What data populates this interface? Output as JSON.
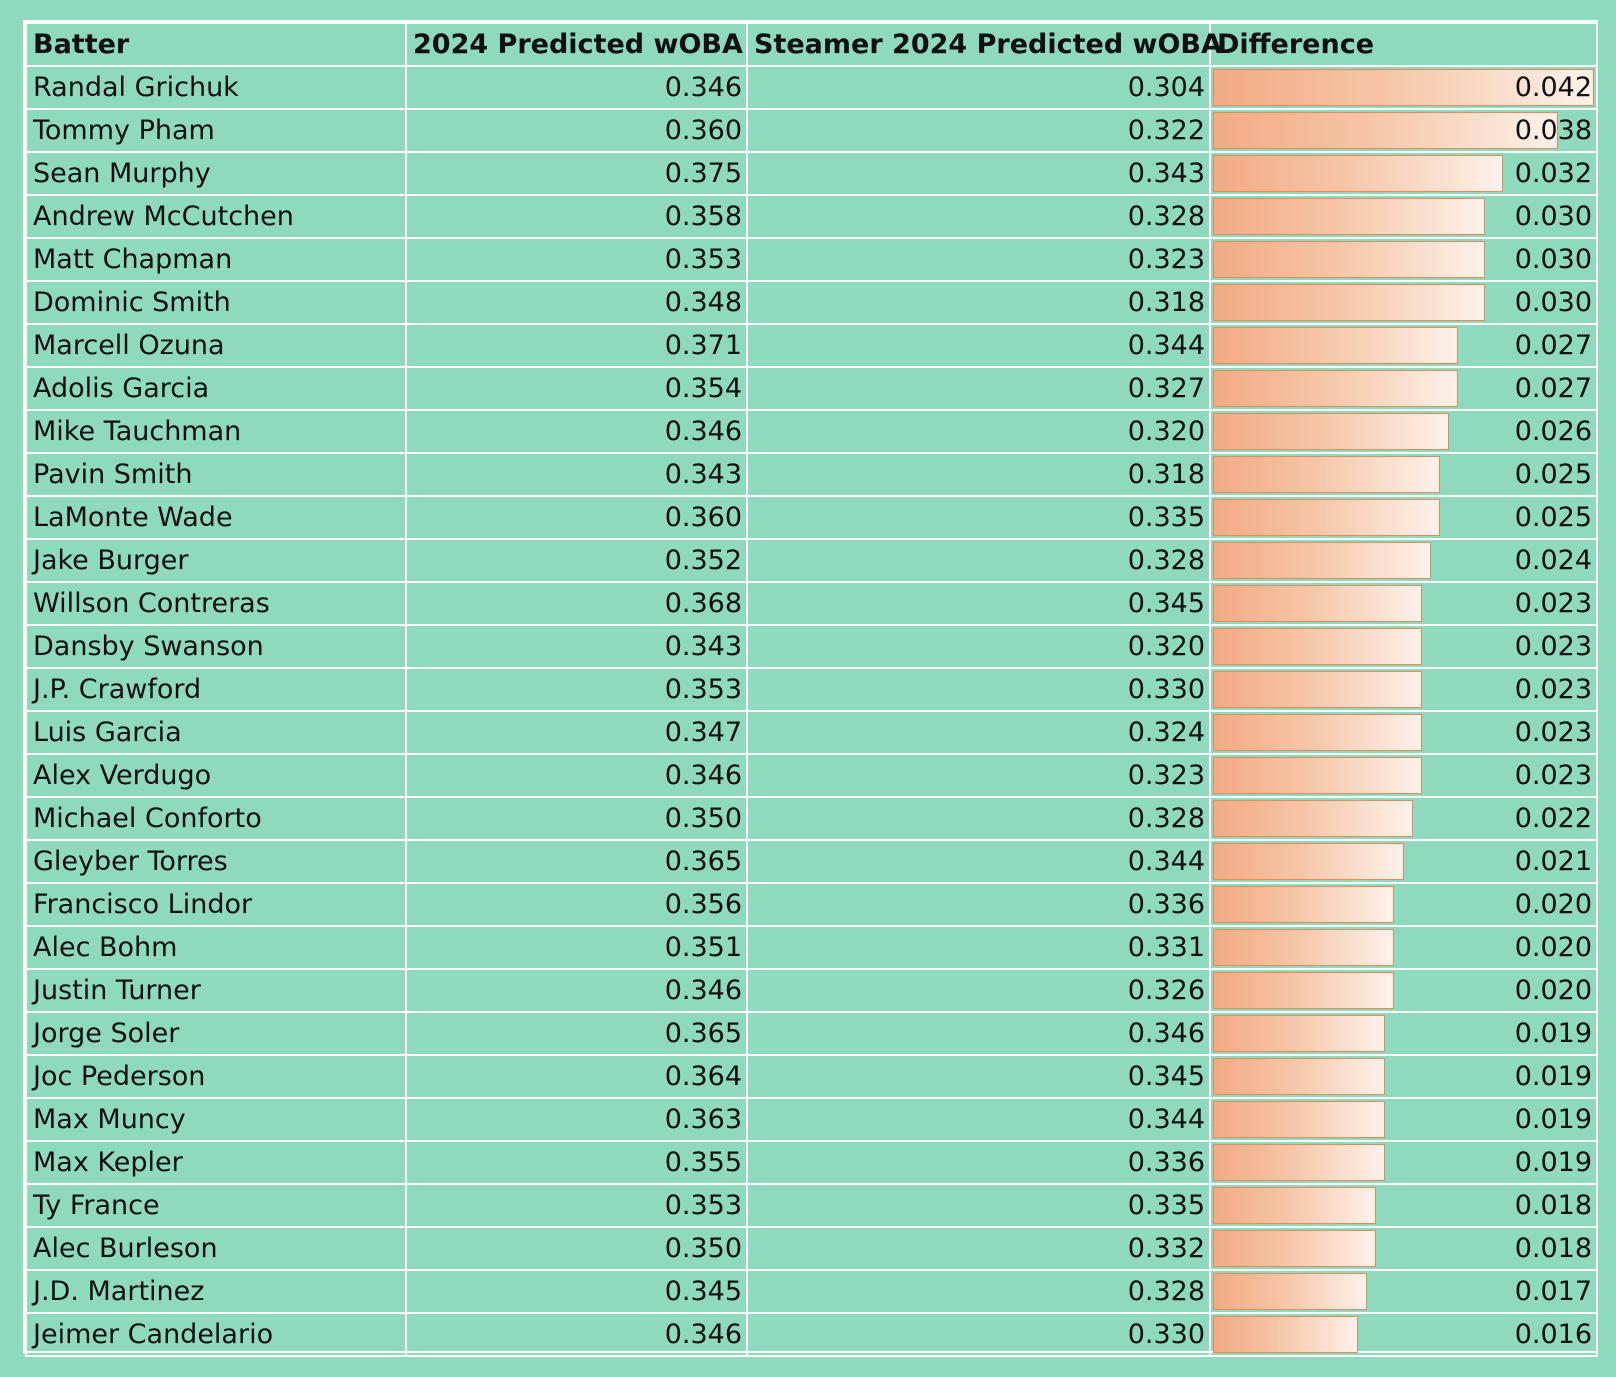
{
  "chart_data": {
    "type": "table",
    "columns": [
      "Batter",
      "2024 Predicted wOBA",
      "Steamer 2024 Predicted wOBA",
      "Difference"
    ],
    "rows": [
      {
        "batter": "Randal Grichuk",
        "predicted": "0.346",
        "steamer": "0.304",
        "difference": "0.042"
      },
      {
        "batter": "Tommy Pham",
        "predicted": "0.360",
        "steamer": "0.322",
        "difference": "0.038"
      },
      {
        "batter": "Sean Murphy",
        "predicted": "0.375",
        "steamer": "0.343",
        "difference": "0.032"
      },
      {
        "batter": "Andrew McCutchen",
        "predicted": "0.358",
        "steamer": "0.328",
        "difference": "0.030"
      },
      {
        "batter": "Matt Chapman",
        "predicted": "0.353",
        "steamer": "0.323",
        "difference": "0.030"
      },
      {
        "batter": "Dominic Smith",
        "predicted": "0.348",
        "steamer": "0.318",
        "difference": "0.030"
      },
      {
        "batter": "Marcell Ozuna",
        "predicted": "0.371",
        "steamer": "0.344",
        "difference": "0.027"
      },
      {
        "batter": "Adolis Garcia",
        "predicted": "0.354",
        "steamer": "0.327",
        "difference": "0.027"
      },
      {
        "batter": "Mike Tauchman",
        "predicted": "0.346",
        "steamer": "0.320",
        "difference": "0.026"
      },
      {
        "batter": "Pavin Smith",
        "predicted": "0.343",
        "steamer": "0.318",
        "difference": "0.025"
      },
      {
        "batter": "LaMonte Wade",
        "predicted": "0.360",
        "steamer": "0.335",
        "difference": "0.025"
      },
      {
        "batter": "Jake Burger",
        "predicted": "0.352",
        "steamer": "0.328",
        "difference": "0.024"
      },
      {
        "batter": "Willson Contreras",
        "predicted": "0.368",
        "steamer": "0.345",
        "difference": "0.023"
      },
      {
        "batter": "Dansby Swanson",
        "predicted": "0.343",
        "steamer": "0.320",
        "difference": "0.023"
      },
      {
        "batter": "J.P. Crawford",
        "predicted": "0.353",
        "steamer": "0.330",
        "difference": "0.023"
      },
      {
        "batter": "Luis Garcia",
        "predicted": "0.347",
        "steamer": "0.324",
        "difference": "0.023"
      },
      {
        "batter": "Alex Verdugo",
        "predicted": "0.346",
        "steamer": "0.323",
        "difference": "0.023"
      },
      {
        "batter": "Michael Conforto",
        "predicted": "0.350",
        "steamer": "0.328",
        "difference": "0.022"
      },
      {
        "batter": "Gleyber Torres",
        "predicted": "0.365",
        "steamer": "0.344",
        "difference": "0.021"
      },
      {
        "batter": "Francisco Lindor",
        "predicted": "0.356",
        "steamer": "0.336",
        "difference": "0.020"
      },
      {
        "batter": "Alec Bohm",
        "predicted": "0.351",
        "steamer": "0.331",
        "difference": "0.020"
      },
      {
        "batter": "Justin Turner",
        "predicted": "0.346",
        "steamer": "0.326",
        "difference": "0.020"
      },
      {
        "batter": "Jorge Soler",
        "predicted": "0.365",
        "steamer": "0.346",
        "difference": "0.019"
      },
      {
        "batter": "Joc Pederson",
        "predicted": "0.364",
        "steamer": "0.345",
        "difference": "0.019"
      },
      {
        "batter": "Max Muncy",
        "predicted": "0.363",
        "steamer": "0.344",
        "difference": "0.019"
      },
      {
        "batter": "Max Kepler",
        "predicted": "0.355",
        "steamer": "0.336",
        "difference": "0.019"
      },
      {
        "batter": "Ty France",
        "predicted": "0.353",
        "steamer": "0.335",
        "difference": "0.018"
      },
      {
        "batter": "Alec Burleson",
        "predicted": "0.350",
        "steamer": "0.332",
        "difference": "0.018"
      },
      {
        "batter": "J.D. Martinez",
        "predicted": "0.345",
        "steamer": "0.328",
        "difference": "0.017"
      },
      {
        "batter": "Jeimer Candelario",
        "predicted": "0.346",
        "steamer": "0.330",
        "difference": "0.016"
      }
    ],
    "data_bar_column": "Difference",
    "data_bar_max": 0.042
  },
  "colors": {
    "background": "#8fd9bf",
    "grid": "#ffffff",
    "bar_start": "#f2ab83",
    "bar_end": "#fdf1ea",
    "bar_border": "#e08d5c"
  }
}
